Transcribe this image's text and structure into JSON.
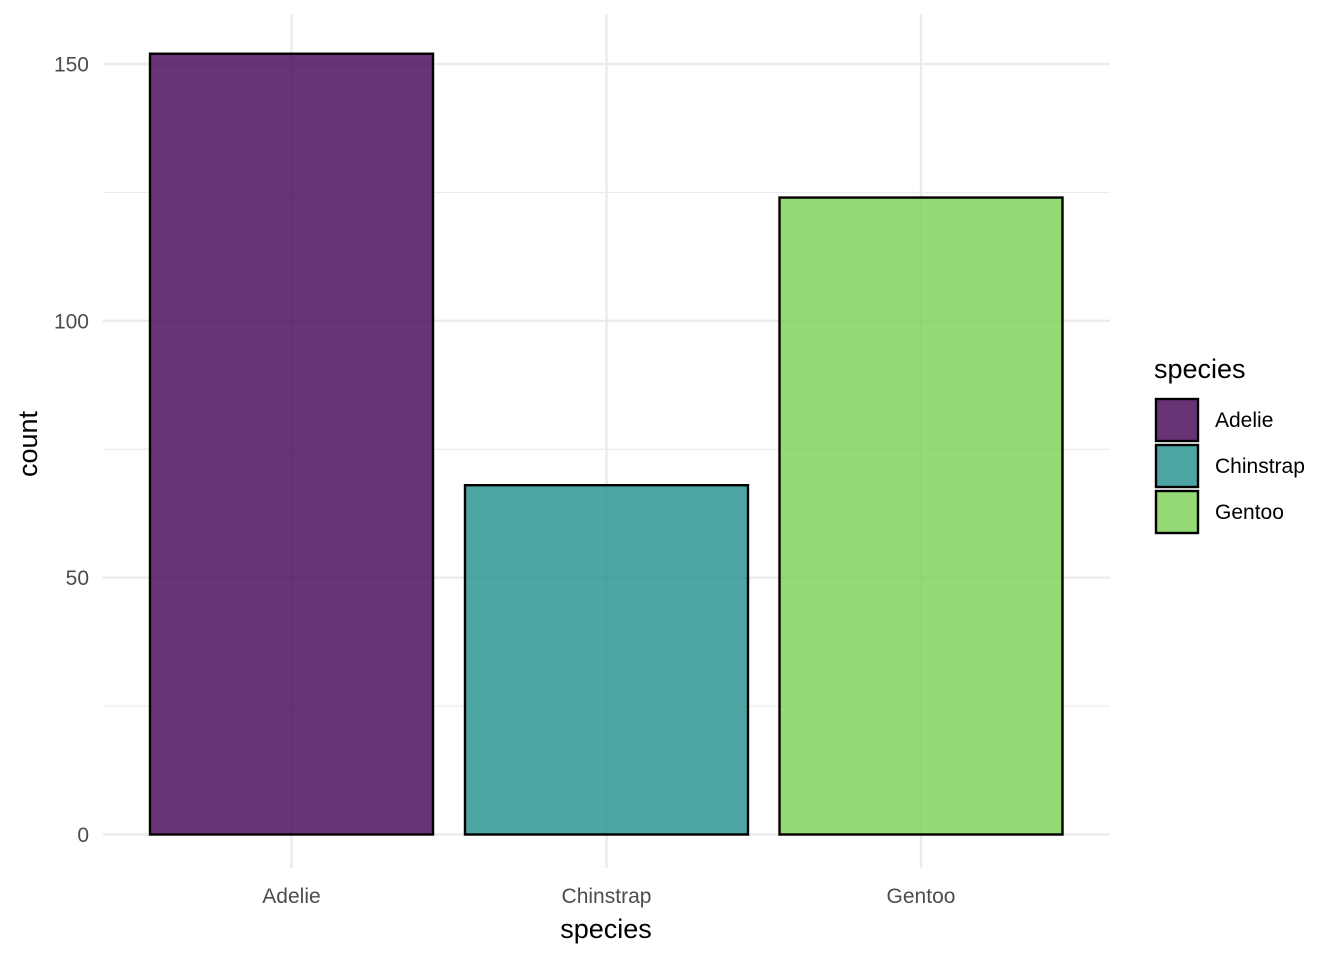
{
  "chart_data": {
    "type": "bar",
    "categories": [
      "Adelie",
      "Chinstrap",
      "Gentoo"
    ],
    "values": [
      152,
      68,
      124
    ],
    "xlabel": "species",
    "ylabel": "count",
    "ylim": [
      0,
      160
    ],
    "yticks": [
      0,
      50,
      100,
      150
    ],
    "ytick_labels": [
      "0",
      "50",
      "100",
      "150"
    ],
    "grid": true,
    "legend": {
      "title": "species",
      "position": "right",
      "entries": [
        "Adelie",
        "Chinstrap",
        "Gentoo"
      ]
    },
    "colors": [
      "#440154",
      "#21908C",
      "#7AD151"
    ],
    "bar_opacity": 0.8,
    "bar_outline": "#000000"
  }
}
